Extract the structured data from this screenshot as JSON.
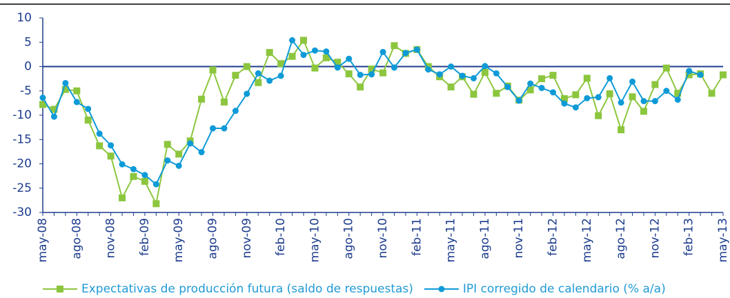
{
  "chart_data": {
    "type": "line",
    "categories": [
      "may-08",
      null,
      null,
      "ago-08",
      null,
      null,
      "nov-08",
      null,
      null,
      "feb-09",
      null,
      null,
      "may-09",
      null,
      null,
      "ago-09",
      null,
      null,
      "nov-09",
      null,
      null,
      "feb-10",
      null,
      null,
      "may-10",
      null,
      null,
      "ago-10",
      null,
      null,
      "nov-10",
      null,
      null,
      "feb-11",
      null,
      null,
      "may-11",
      null,
      null,
      "ago-11",
      null,
      null,
      "nov-11",
      null,
      null,
      "feb-12",
      null,
      null,
      "may-12",
      null,
      null,
      "ago-12",
      null,
      null,
      "nov-12",
      null,
      null,
      "feb-13",
      null,
      null,
      "may-13"
    ],
    "series": [
      {
        "name": "Expectativas de producción futura (saldo de respuestas)",
        "color": "#8cc63e",
        "marker": "square",
        "values": [
          -7.8,
          -8.8,
          -4.7,
          -5,
          -11,
          -16.3,
          -18.4,
          -27,
          -22.6,
          -23.6,
          -28.2,
          -16,
          -18,
          -15.3,
          -6.7,
          -0.7,
          -7.3,
          -1.8,
          0,
          -3.3,
          2.9,
          0.6,
          2.1,
          5.4,
          -0.3,
          1.8,
          0.9,
          -1.5,
          -4.2,
          -0.5,
          -1.3,
          4.3,
          2.7,
          3.5,
          0,
          -2.1,
          -4.2,
          -2.1,
          -5.7,
          -1.2,
          -5.5,
          -4,
          -6.9,
          -4.8,
          -2.5,
          -1.8,
          -6.6,
          -5.8,
          -2.4,
          -10.1,
          -5.6,
          -13,
          -6.2,
          -9.2,
          -3.7,
          -0.3,
          -5.5,
          -1.7,
          -1.5,
          -5.5,
          -1.7
        ]
      },
      {
        "name": "IPI corregido de calendario (% a/a)",
        "color": "#0e9ad7",
        "marker": "circle",
        "values": [
          -6.4,
          -10.3,
          -3.4,
          -7.3,
          -8.7,
          -13.8,
          -16.2,
          -20.1,
          -21.1,
          -22.3,
          -24.2,
          -19.3,
          -20.4,
          -15.8,
          -17.6,
          -12.7,
          -12.7,
          -9.1,
          -5.6,
          -1.4,
          -2.9,
          -1.9,
          5.4,
          2.4,
          3.3,
          3.1,
          -0.2,
          1.6,
          -1.7,
          -1.6,
          3.0,
          -0.2,
          2.8,
          3.5,
          -0.6,
          -1.6,
          0,
          -1.9,
          -2.4,
          0.1,
          -1.4,
          -4.2,
          -7,
          -3.5,
          -4.4,
          -5.3,
          -7.6,
          -8.4,
          -6.5,
          -6.3,
          -2.4,
          -7.4,
          -3.1,
          -7.1,
          -7.1,
          -5,
          -6.8,
          -0.9,
          -1.7,
          null,
          null
        ]
      }
    ],
    "ylim": [
      -30,
      10
    ],
    "yticks": [
      -30,
      -25,
      -20,
      -15,
      -10,
      -5,
      0,
      5,
      10
    ],
    "grid": false,
    "zero_line": true,
    "legend": "bottom"
  }
}
